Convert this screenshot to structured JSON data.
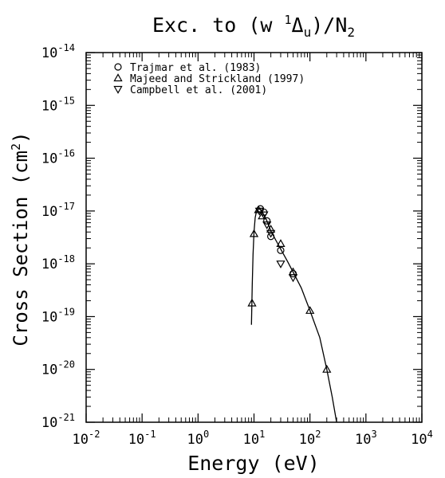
{
  "chart_data": {
    "type": "scatter",
    "title_prefix": "Exc. to (w ",
    "title_sup": "1",
    "title_delta": "Δ",
    "title_sub_u": "u",
    "title_mid": ")/N",
    "title_sub_2": "2",
    "xlabel": "Energy (eV)",
    "ylabel_text": "Cross Section (cm",
    "ylabel_sup": "2",
    "ylabel_close": ")",
    "xscale": "log",
    "yscale": "log",
    "xlim": [
      0.01,
      10000
    ],
    "ylim": [
      1e-21,
      1e-14
    ],
    "x_ticks": [
      {
        "base": "10",
        "exp": "-2",
        "value": 0.01
      },
      {
        "base": "10",
        "exp": "-1",
        "value": 0.1
      },
      {
        "base": "10",
        "exp": "0",
        "value": 1
      },
      {
        "base": "10",
        "exp": "1",
        "value": 10
      },
      {
        "base": "10",
        "exp": "2",
        "value": 100
      },
      {
        "base": "10",
        "exp": "3",
        "value": 1000
      },
      {
        "base": "10",
        "exp": "4",
        "value": 10000
      }
    ],
    "y_ticks": [
      {
        "base": "10",
        "exp": "-14",
        "value": 1e-14
      },
      {
        "base": "10",
        "exp": "-15",
        "value": 1e-15
      },
      {
        "base": "10",
        "exp": "-16",
        "value": 1e-16
      },
      {
        "base": "10",
        "exp": "-17",
        "value": 1e-17
      },
      {
        "base": "10",
        "exp": "-18",
        "value": 1e-18
      },
      {
        "base": "10",
        "exp": "-19",
        "value": 1e-19
      },
      {
        "base": "10",
        "exp": "-20",
        "value": 1e-20
      },
      {
        "base": "10",
        "exp": "-21",
        "value": 1e-21
      }
    ],
    "legend_position": "top-left",
    "series": [
      {
        "name": "Trajmar et al. (1983)",
        "marker": "circle",
        "points": [
          [
            13,
            1.1e-17
          ],
          [
            15,
            9.5e-18
          ],
          [
            17,
            6.5e-18
          ],
          [
            20,
            3.3e-18
          ],
          [
            30,
            1.8e-18
          ],
          [
            50,
            6.5e-19
          ]
        ]
      },
      {
        "name": "Majeed and Strickland (1997)",
        "marker": "triangle-up",
        "points": [
          [
            9.2,
            1.8e-19
          ],
          [
            10,
            3.7e-18
          ],
          [
            12,
            1.05e-17
          ],
          [
            14,
            8e-18
          ],
          [
            20,
            4.5e-18
          ],
          [
            30,
            2.4e-18
          ],
          [
            50,
            7e-19
          ],
          [
            100,
            1.3e-19
          ],
          [
            200,
            1e-20
          ]
        ]
      },
      {
        "name": "Campbell et al. (2001)",
        "marker": "triangle-down",
        "points": [
          [
            12.5,
            1e-17
          ],
          [
            15,
            8.5e-18
          ],
          [
            17,
            5.5e-18
          ],
          [
            20,
            3.8e-18
          ],
          [
            30,
            1e-18
          ],
          [
            50,
            5.5e-19
          ]
        ]
      }
    ],
    "fit_curve": [
      [
        9.0,
        7e-20
      ],
      [
        9.3,
        4e-19
      ],
      [
        9.6,
        1.5e-18
      ],
      [
        10,
        4e-18
      ],
      [
        10.5,
        7.5e-18
      ],
      [
        11,
        9.5e-18
      ],
      [
        12,
        1.08e-17
      ],
      [
        13,
        1.08e-17
      ],
      [
        14,
        9.5e-18
      ],
      [
        15,
        8.5e-18
      ],
      [
        17,
        6.5e-18
      ],
      [
        20,
        4.2e-18
      ],
      [
        25,
        2.7e-18
      ],
      [
        30,
        1.9e-18
      ],
      [
        40,
        1.1e-18
      ],
      [
        50,
        7e-19
      ],
      [
        70,
        3.5e-19
      ],
      [
        100,
        1.3e-19
      ],
      [
        150,
        4e-20
      ],
      [
        200,
        1e-20
      ],
      [
        250,
        3e-21
      ],
      [
        300,
        1e-21
      ]
    ]
  }
}
